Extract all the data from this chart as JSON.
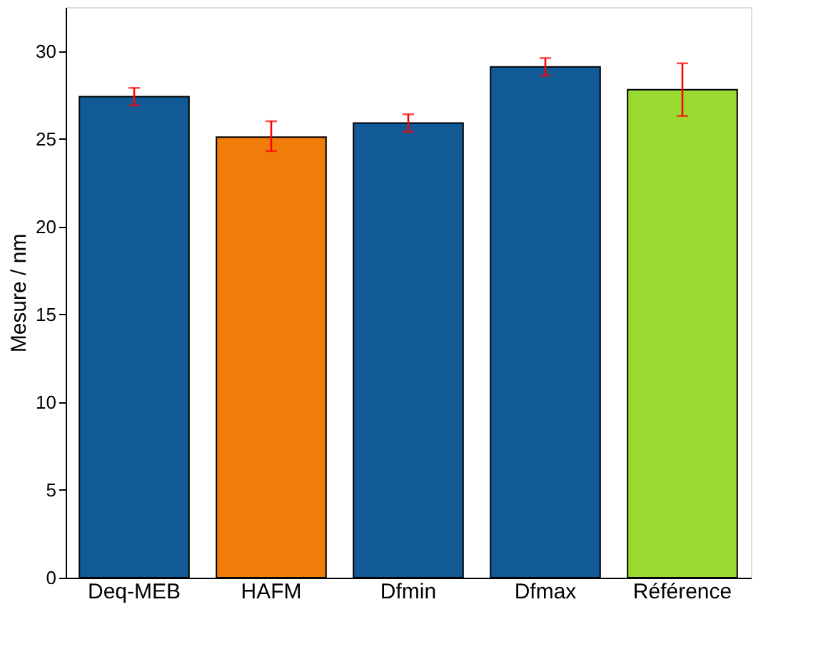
{
  "chart_data": {
    "type": "bar",
    "ylabel": "Mesure / nm",
    "categories": [
      "Deq-MEB",
      "HAFM",
      "Dfmin",
      "Dfmax",
      "Référence"
    ],
    "values": [
      27.4,
      25.1,
      25.9,
      29.1,
      27.8
    ],
    "colors": [
      "#115a96",
      "#f07c0a",
      "#115a96",
      "#115a96",
      "#9ad832"
    ],
    "errors": [
      [
        26.9,
        27.9
      ],
      [
        24.3,
        26.0
      ],
      [
        25.4,
        26.4
      ],
      [
        28.6,
        29.6
      ],
      [
        26.3,
        29.3
      ]
    ],
    "ylim": [
      0,
      32.5
    ],
    "yticks": [
      0,
      5,
      10,
      15,
      20,
      25,
      30
    ],
    "grid": false
  }
}
